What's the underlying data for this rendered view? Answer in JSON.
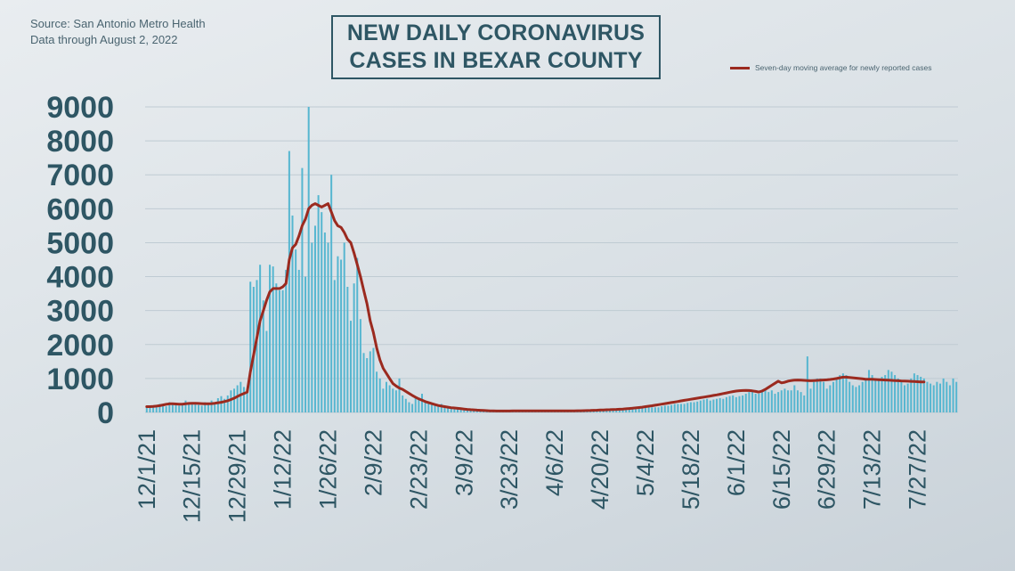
{
  "source": {
    "line1": "Source: San Antonio Metro Health",
    "line2": "Data through August 2, 2022"
  },
  "header": {
    "title_line1": "NEW DAILY CORONAVIRUS",
    "title_line2": "CASES IN BEXAR COUNTY"
  },
  "colors": {
    "bars": "#56b6d0",
    "line": "#9b2a1f",
    "axis_text": "#2e5664",
    "grid": "#bfcbd3"
  },
  "chart_data": {
    "type": "bar",
    "title": "NEW DAILY CORONAVIRUS CASES IN BEXAR COUNTY",
    "start_date": "12/1/21",
    "end_date": "8/2/22",
    "ylim": [
      0,
      9000
    ],
    "yticks": [
      "0",
      "1000",
      "2000",
      "3000",
      "4000",
      "5000",
      "6000",
      "7000",
      "8000",
      "9000"
    ],
    "xticks": [
      "12/1/21",
      "12/15/21",
      "12/29/21",
      "1/12/22",
      "1/26/22",
      "2/9/22",
      "2/23/22",
      "3/9/22",
      "3/23/22",
      "4/6/22",
      "4/20/22",
      "5/4/22",
      "5/18/22",
      "6/1/22",
      "6/15/22",
      "6/29/22",
      "7/13/22",
      "7/27/22"
    ],
    "grid": true,
    "legend_position": "top-right",
    "series": [
      {
        "type": "bar",
        "values": [
          200,
          180,
          150,
          200,
          250,
          200,
          180,
          300,
          280,
          220,
          200,
          250,
          350,
          300,
          280,
          250,
          220,
          200,
          300,
          280,
          350,
          300,
          420,
          480,
          400,
          500,
          650,
          700,
          800,
          900,
          750,
          650,
          3850,
          3700,
          3900,
          4350,
          3300,
          2400,
          4350,
          4300,
          3800,
          3600,
          3600,
          4200,
          7700,
          5800,
          4800,
          4200,
          7200,
          4000,
          9000,
          5000,
          5500,
          6400,
          5900,
          5300,
          5000,
          7000,
          3900,
          4600,
          4500,
          5000,
          3700,
          2700,
          3800,
          4550,
          2750,
          1750,
          1600,
          1800,
          1900,
          1200,
          1000,
          700,
          900,
          800,
          700,
          650,
          1000,
          500,
          400,
          300,
          250,
          450,
          400,
          550,
          350,
          300,
          250,
          250,
          200,
          250,
          200,
          150,
          150,
          150,
          100,
          120,
          100,
          100,
          80,
          80,
          70,
          60,
          60,
          50,
          50,
          40,
          40,
          30,
          30,
          30,
          30,
          30,
          40,
          40,
          40,
          30,
          30,
          30,
          40,
          40,
          40,
          40,
          40,
          40,
          40,
          40,
          40,
          40,
          40,
          40,
          40,
          40,
          40,
          40,
          60,
          60,
          70,
          80,
          80,
          80,
          100,
          100,
          100,
          100,
          100,
          100,
          100,
          100,
          100,
          100,
          120,
          120,
          140,
          150,
          150,
          150,
          150,
          180,
          200,
          200,
          220,
          250,
          250,
          250,
          250,
          280,
          300,
          300,
          320,
          350,
          380,
          400,
          350,
          380,
          400,
          420,
          400,
          450,
          480,
          500,
          450,
          480,
          500,
          550,
          600,
          620,
          550,
          550,
          600,
          650,
          600,
          650,
          550,
          600,
          650,
          700,
          650,
          650,
          800,
          650,
          600,
          500,
          1650,
          700,
          900,
          1000,
          1000,
          900,
          700,
          800,
          900,
          1000,
          1100,
          1150,
          1100,
          900,
          800,
          750,
          800,
          900,
          1000,
          1250,
          1100,
          1000,
          1000,
          1050,
          1100,
          1250,
          1200,
          1100,
          1000,
          900,
          800,
          850,
          1000,
          1150,
          1100,
          1050,
          1000,
          900,
          850,
          800,
          900,
          850,
          1000,
          900,
          800,
          1000,
          900
        ]
      },
      {
        "name": "Seven-day moving average for newly reported cases",
        "type": "line",
        "values": [
          170,
          170,
          175,
          185,
          200,
          220,
          240,
          255,
          255,
          250,
          245,
          245,
          255,
          265,
          270,
          270,
          265,
          260,
          255,
          255,
          260,
          270,
          285,
          300,
          320,
          345,
          380,
          420,
          470,
          520,
          560,
          600,
          1200,
          1700,
          2200,
          2700,
          3000,
          3300,
          3550,
          3650,
          3650,
          3650,
          3700,
          3800,
          4500,
          4850,
          4950,
          5200,
          5500,
          5700,
          6000,
          6100,
          6150,
          6100,
          6050,
          6100,
          6150,
          5900,
          5650,
          5500,
          5450,
          5300,
          5100,
          5000,
          4700,
          4350,
          4000,
          3600,
          3200,
          2700,
          2350,
          1900,
          1550,
          1300,
          1150,
          1000,
          850,
          780,
          720,
          680,
          620,
          560,
          500,
          450,
          400,
          360,
          320,
          290,
          260,
          230,
          205,
          185,
          170,
          155,
          140,
          130,
          120,
          110,
          100,
          90,
          82,
          75,
          68,
          62,
          57,
          52,
          48,
          45,
          43,
          42,
          42,
          42,
          43,
          44,
          45,
          45,
          45,
          45,
          45,
          45,
          45,
          45,
          45,
          45,
          45,
          45,
          45,
          45,
          45,
          45,
          46,
          47,
          48,
          49,
          50,
          52,
          55,
          58,
          62,
          66,
          70,
          74,
          78,
          82,
          86,
          90,
          95,
          100,
          108,
          116,
          124,
          134,
          144,
          156,
          170,
          184,
          198,
          212,
          228,
          244,
          260,
          276,
          292,
          308,
          324,
          340,
          356,
          372,
          388,
          404,
          420,
          436,
          452,
          468,
          484,
          500,
          518,
          536,
          555,
          575,
          595,
          615,
          630,
          640,
          645,
          650,
          645,
          635,
          620,
          600,
          630,
          680,
          740,
          800,
          860,
          920,
          870,
          890,
          920,
          940,
          950,
          955,
          950,
          945,
          940,
          935,
          940,
          945,
          950,
          955,
          960,
          970,
          985,
          1000,
          1020,
          1040,
          1040,
          1030,
          1020,
          1010,
          1000,
          990,
          980,
          975,
          975,
          970,
          965,
          960,
          955,
          950,
          945,
          940,
          935,
          930,
          925,
          920,
          915,
          910,
          905,
          900,
          900
        ]
      }
    ]
  }
}
